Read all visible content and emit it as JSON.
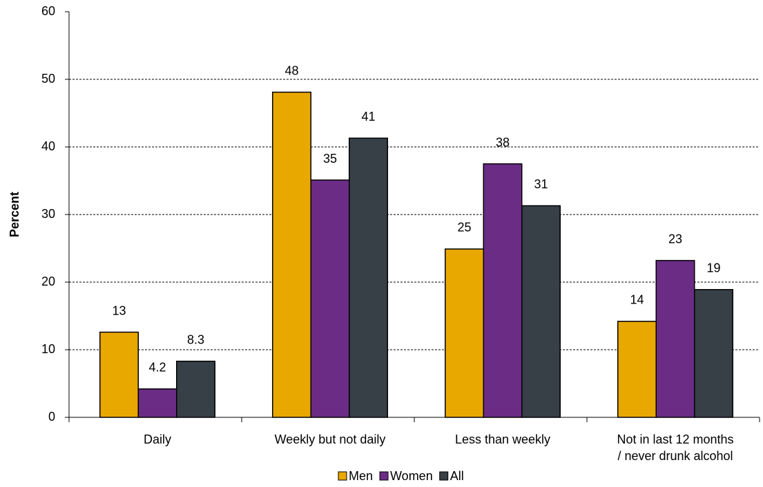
{
  "chart_data": {
    "type": "bar",
    "y_label": "Percent",
    "categories": [
      "Daily",
      "Weekly but not daily",
      "Less than weekly",
      "Not in last 12 months\n/ never drunk alcohol"
    ],
    "series": [
      {
        "name": "Men",
        "color": "#e8a800",
        "values": [
          12.6,
          48.1,
          24.9,
          14.2
        ],
        "value_labels": [
          "13",
          "48",
          "25",
          "14"
        ]
      },
      {
        "name": "Women",
        "color": "#6a2c85",
        "values": [
          4.2,
          35.1,
          37.5,
          23.2
        ],
        "value_labels": [
          "4.2",
          "35",
          "38",
          "23"
        ]
      },
      {
        "name": "All",
        "color": "#373f47",
        "values": [
          8.3,
          41.3,
          31.3,
          18.9
        ],
        "value_labels": [
          "8.3",
          "41",
          "31",
          "19"
        ]
      }
    ],
    "ylim": [
      0,
      60
    ],
    "yticks": [
      0,
      10,
      20,
      30,
      40,
      50,
      60
    ],
    "grid": true,
    "legend": "bottom"
  }
}
